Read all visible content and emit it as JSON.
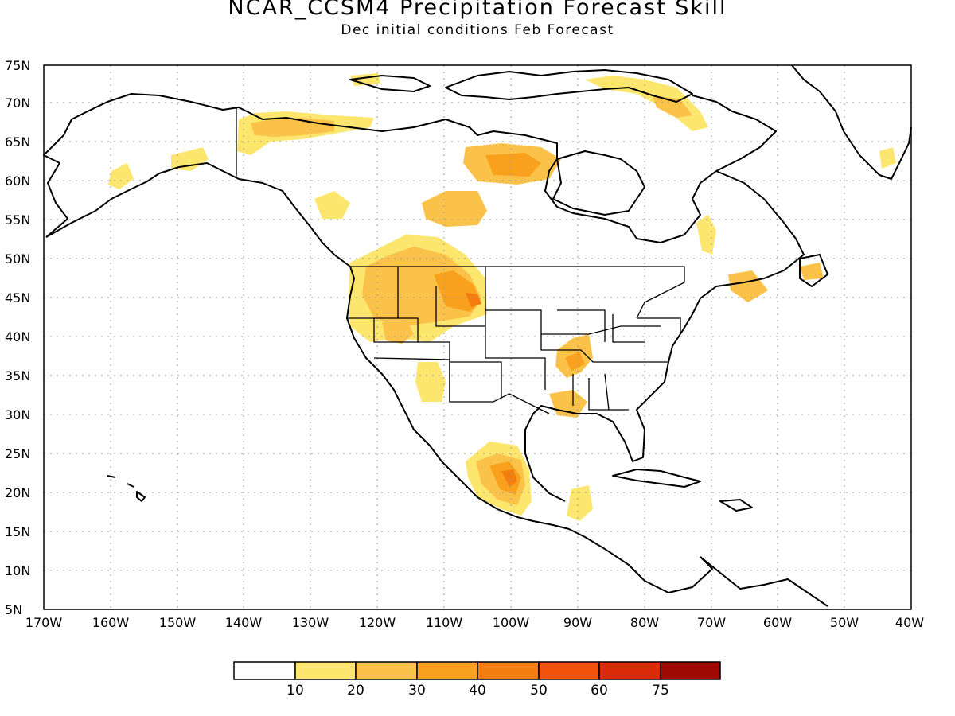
{
  "title": "NCAR_CCSM4 Precipitation Forecast Skill",
  "subtitle": "Dec initial conditions  Feb Forecast",
  "map": {
    "lon_range": [
      -170,
      -40
    ],
    "lat_range": [
      5,
      75
    ],
    "lat_ticks": [
      "5N",
      "10N",
      "15N",
      "20N",
      "25N",
      "30N",
      "35N",
      "40N",
      "45N",
      "50N",
      "55N",
      "60N",
      "65N",
      "70N",
      "75N"
    ],
    "lon_ticks": [
      "170W",
      "160W",
      "150W",
      "140W",
      "130W",
      "120W",
      "110W",
      "100W",
      "90W",
      "80W",
      "70W",
      "60W",
      "50W",
      "40W"
    ],
    "grid": "dotted"
  },
  "colorbar": {
    "labels": [
      "10",
      "20",
      "30",
      "40",
      "50",
      "60",
      "75"
    ],
    "colors": [
      "#ffffff",
      "#fde66e",
      "#fbc24a",
      "#f9a11c",
      "#f57d10",
      "#f2520a",
      "#db2a08",
      "#a00a04"
    ]
  }
}
